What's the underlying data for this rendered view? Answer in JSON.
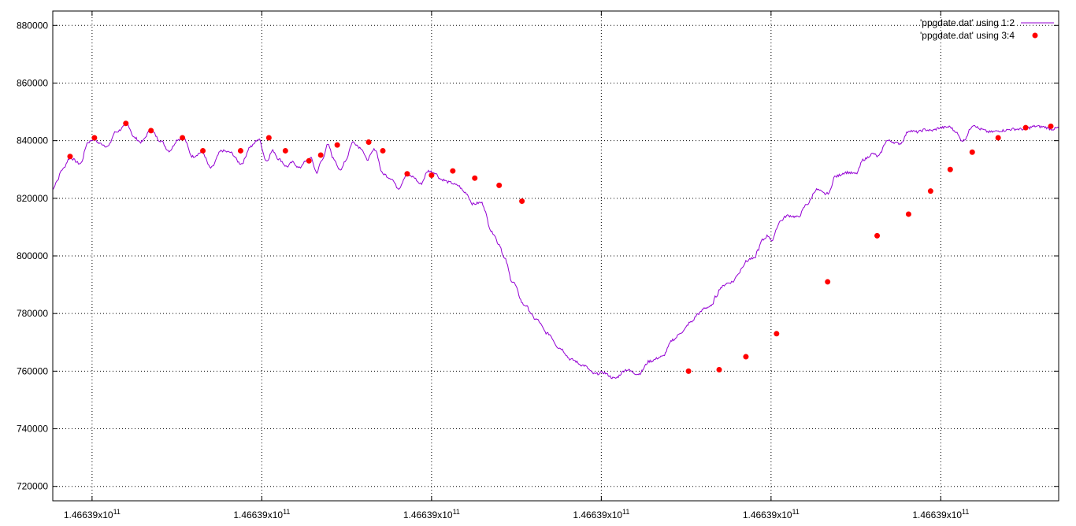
{
  "chart_data": {
    "type": "line",
    "title": "",
    "xlabel": "",
    "ylabel": "",
    "grid": true,
    "legend_position": "top-right",
    "ylim": [
      715000,
      885000
    ],
    "xlim": [
      0,
      1280
    ],
    "y_ticks": [
      720000,
      740000,
      760000,
      780000,
      800000,
      820000,
      840000,
      860000,
      880000
    ],
    "y_tick_labels": [
      "720000",
      "740000",
      "760000",
      "780000",
      "800000",
      "820000",
      "840000",
      "860000",
      "880000"
    ],
    "x_ticks": [
      50,
      266,
      482,
      698,
      914,
      1130
    ],
    "x_tick_labels": [
      "1.46639x10",
      "1.46639x10",
      "1.46639x10",
      "1.46639x10",
      "1.46639x10",
      "1.46639x10"
    ],
    "x_tick_exponent": "11",
    "series": [
      {
        "name": "'ppgdate.dat' using 1:2",
        "style": "line",
        "color": "#9400d3",
        "x": [
          0,
          5,
          12,
          22,
          35,
          45,
          52,
          60,
          70,
          80,
          95,
          104,
          112,
          125,
          137,
          148,
          160,
          166,
          178,
          190,
          201,
          215,
          225,
          240,
          252,
          262,
          272,
          280,
          288,
          298,
          305,
          314,
          320,
          328,
          336,
          342,
          350,
          358,
          366,
          372,
          382,
          392,
          400,
          410,
          420,
          430,
          440,
          450,
          458,
          468,
          478,
          485,
          495,
          505,
          515,
          525,
          535,
          545,
          560,
          568,
          575,
          585,
          600,
          615,
          630,
          645,
          660,
          675,
          690,
          700,
          715,
          730,
          745,
          760,
          775,
          790,
          800,
          812,
          822,
          830,
          838,
          844,
          850,
          858,
          865,
          873,
          878,
          882,
          888,
          893,
          897,
          903,
          910,
          916,
          920,
          925,
          935,
          948,
          960,
          972,
          984,
          988,
          995,
          1010,
          1022,
          1032,
          1044,
          1050,
          1062,
          1078,
          1090,
          1100,
          1110,
          1118,
          1130,
          1142,
          1147,
          1158,
          1172,
          1180,
          1192,
          1208,
          1222,
          1235,
          1242,
          1250,
          1260,
          1272,
          1280
        ],
        "values": [
          823000,
          826000,
          830000,
          834000,
          832000,
          839500,
          840500,
          839000,
          838000,
          843000,
          845500,
          841000,
          839500,
          843500,
          840000,
          836500,
          840500,
          841000,
          834500,
          836000,
          830500,
          836500,
          836000,
          832000,
          838000,
          840500,
          833000,
          836500,
          833500,
          831000,
          832500,
          830500,
          832500,
          834000,
          829000,
          833000,
          838500,
          833500,
          829500,
          833000,
          839500,
          837500,
          833500,
          837000,
          828500,
          827000,
          823500,
          828000,
          827500,
          825000,
          829500,
          829000,
          826500,
          825500,
          824500,
          822000,
          818000,
          818500,
          808000,
          804000,
          799000,
          791000,
          783000,
          778000,
          773000,
          768000,
          764000,
          762000,
          759000,
          759500,
          757500,
          760500,
          759000,
          763500,
          765000,
          771000,
          773500,
          777000,
          780000,
          782000,
          782500,
          786000,
          789000,
          790500,
          791000,
          794000,
          796500,
          798000,
          799000,
          799000,
          802000,
          805500,
          807000,
          805000,
          809000,
          812000,
          814000,
          813500,
          818000,
          823000,
          821500,
          822000,
          827500,
          829000,
          828500,
          833500,
          835500,
          834500,
          840000,
          839000,
          843500,
          843000,
          843800,
          843500,
          844500,
          844800,
          843500,
          840000,
          845500,
          844000,
          843000,
          843500,
          844000,
          844000,
          844500,
          845000,
          844800,
          844000,
          844500
        ]
      },
      {
        "name": "'ppgdate.dat' using 3:4",
        "style": "points",
        "color": "#ff0000",
        "x": [
          22,
          53,
          93,
          125,
          165,
          191,
          239,
          275,
          296,
          326,
          341,
          362,
          402,
          420,
          451,
          482,
          509,
          537,
          568,
          597,
          809,
          848,
          882,
          921,
          986,
          1049,
          1089,
          1117,
          1142,
          1170,
          1203,
          1238,
          1270
        ],
        "values": [
          834500,
          841000,
          846000,
          843500,
          841000,
          836500,
          836500,
          841000,
          836500,
          833000,
          835000,
          838500,
          839500,
          836500,
          828500,
          828000,
          829500,
          827000,
          824500,
          819000,
          760000,
          760500,
          765000,
          773000,
          791000,
          807000,
          814500,
          822500,
          830000,
          836000,
          841000,
          844500,
          845000
        ]
      }
    ]
  }
}
